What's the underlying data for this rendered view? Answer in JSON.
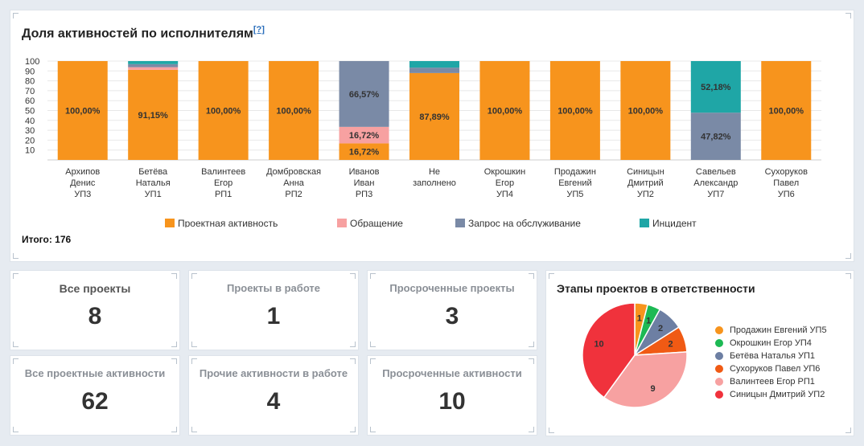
{
  "chart_title": "Доля активностей по исполнителям",
  "help_label": "[?]",
  "total_label": "Итого: 176",
  "colors": {
    "project": "#f7941d",
    "request": "#f7a1a1",
    "service": "#7a8aa6",
    "incident": "#1fa6a6"
  },
  "chart_data": {
    "type": "bar",
    "stacked": true,
    "ylim": [
      0,
      100
    ],
    "yticks": [
      "100",
      "90",
      "80",
      "70",
      "60",
      "50",
      "40",
      "30",
      "20",
      "10"
    ],
    "grid": true,
    "legend_position": "bottom",
    "categories": [
      [
        "Архипов",
        "Денис",
        "УП3"
      ],
      [
        "Бетёва",
        "Наталья",
        "УП1"
      ],
      [
        "Валинтеев",
        "Егор",
        "РП1"
      ],
      [
        "Домбровская",
        "Анна",
        "РП2"
      ],
      [
        "Иванов",
        "Иван",
        "РП3"
      ],
      [
        "Не",
        "заполнено",
        ""
      ],
      [
        "Окрошкин",
        "Егор",
        "УП4"
      ],
      [
        "Продажин",
        "Евгений",
        "УП5"
      ],
      [
        "Синицын",
        "Дмитрий",
        "УП2"
      ],
      [
        "Савельев",
        "Александр",
        "УП7"
      ],
      [
        "Сухоруков",
        "Павел",
        "УП6"
      ]
    ],
    "series": [
      {
        "name": "Проектная активность",
        "key": "project",
        "values": [
          100,
          91.15,
          100,
          100,
          16.72,
          87.89,
          100,
          100,
          100,
          0,
          100
        ],
        "labels": [
          "100,00%",
          "91,15%",
          "100,00%",
          "100,00%",
          "16,72%",
          "87,89%",
          "100,00%",
          "100,00%",
          "100,00%",
          "",
          "100,00%"
        ]
      },
      {
        "name": "Обращение",
        "key": "request",
        "values": [
          0,
          2.65,
          0,
          0,
          16.72,
          0,
          0,
          0,
          0,
          0,
          0
        ],
        "labels": [
          "",
          "",
          "",
          "",
          "16,72%",
          "",
          "",
          "",
          "",
          "",
          ""
        ]
      },
      {
        "name": "Запрос на обслуживание",
        "key": "service",
        "values": [
          0,
          3.1,
          0,
          0,
          66.57,
          5.5,
          0,
          0,
          0,
          47.82,
          0
        ],
        "labels": [
          "",
          "",
          "",
          "",
          "66,57%",
          "",
          "",
          "",
          "",
          "47,82%",
          ""
        ]
      },
      {
        "name": "Инцидент",
        "key": "incident",
        "values": [
          0,
          3.1,
          0,
          0,
          0,
          6.61,
          0,
          0,
          0,
          52.18,
          0
        ],
        "labels": [
          "",
          "",
          "",
          "",
          "",
          "",
          "",
          "",
          "",
          "52,18%",
          ""
        ]
      }
    ]
  },
  "stats": [
    {
      "label": "Все проекты",
      "value": "8"
    },
    {
      "label": "Проекты в работе",
      "value": "1"
    },
    {
      "label": "Просроченные проекты",
      "value": "3"
    },
    {
      "label": "Все проектные активности",
      "value": "62"
    },
    {
      "label": "Прочие активности в работе",
      "value": "4"
    },
    {
      "label": "Просроченные активности",
      "value": "10"
    }
  ],
  "pie_title": "Этапы проектов в ответственности",
  "pie_data": {
    "type": "pie",
    "legend_position": "right",
    "slices": [
      {
        "name": "Продажин Евгений УП5",
        "value": 1,
        "color": "#f7941d"
      },
      {
        "name": "Окрошкин Егор УП4",
        "value": 1,
        "color": "#1db954"
      },
      {
        "name": "Бетёва Наталья УП1",
        "value": 2,
        "color": "#6d7fa3"
      },
      {
        "name": "Сухоруков Павел УП6",
        "value": 2,
        "color": "#f05a14"
      },
      {
        "name": "Валинтеев Егор РП1",
        "value": 9,
        "color": "#f7a1a1"
      },
      {
        "name": "Синицын Дмитрий УП2",
        "value": 10,
        "color": "#f0323c"
      }
    ]
  }
}
